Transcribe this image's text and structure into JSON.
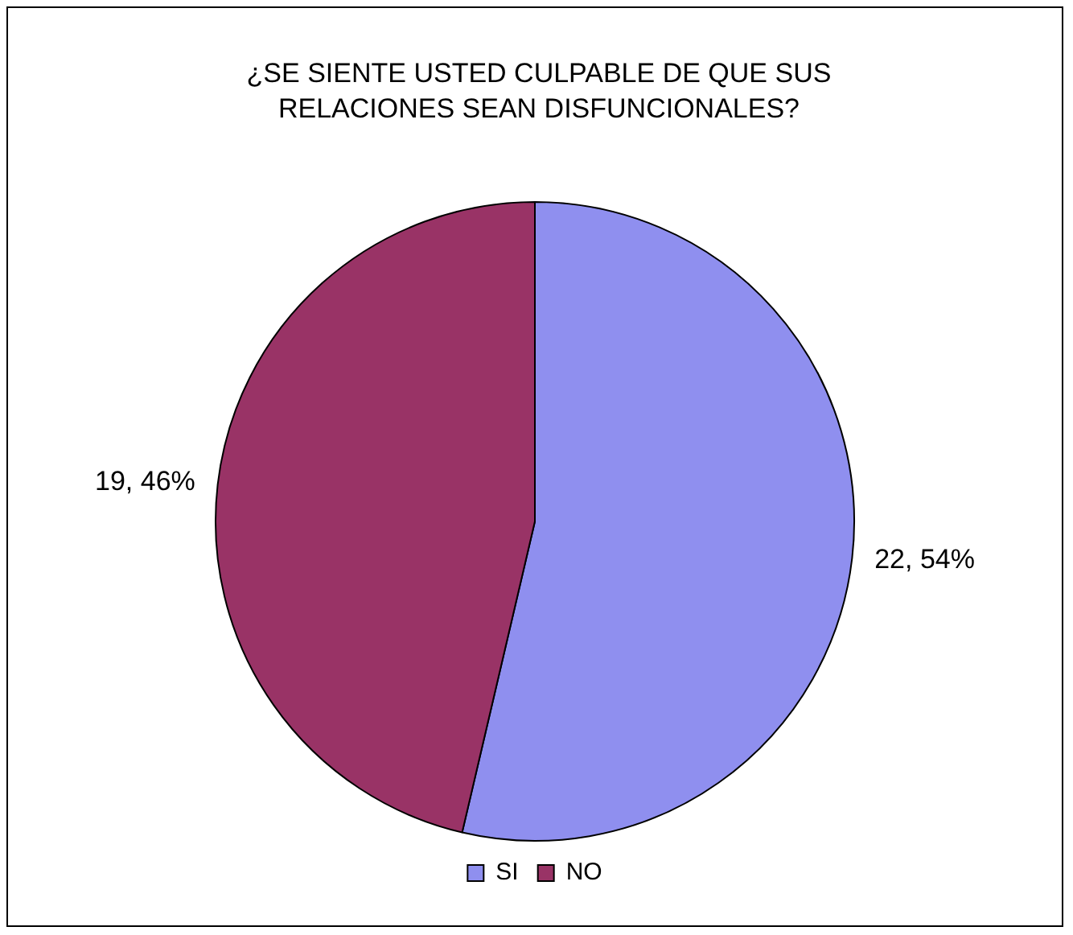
{
  "chart_data": {
    "type": "pie",
    "title": "¿SE SIENTE USTED CULPABLE DE QUE SUS RELACIONES SEAN DISFUNCIONALES?",
    "categories": [
      "SI",
      "NO"
    ],
    "values": [
      22,
      19
    ],
    "colors": [
      "#8f8fef",
      "#993366"
    ],
    "value_labels": [
      "22, 54%",
      "19, 46%"
    ],
    "legend": "bottom"
  }
}
